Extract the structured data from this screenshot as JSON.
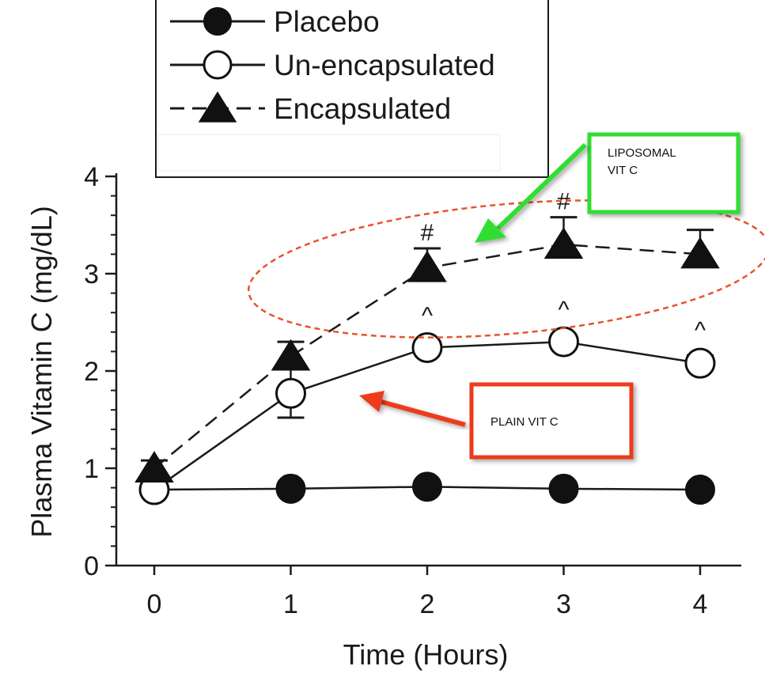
{
  "chart_data": {
    "type": "line",
    "xlabel": "Time (Hours)",
    "ylabel": "Plasma Vitamin C (mg/dL)",
    "x": [
      0,
      1,
      2,
      3,
      4
    ],
    "xlim": [
      -0.3,
      4.4
    ],
    "ylim": [
      0,
      4
    ],
    "x_ticks": [
      "0",
      "1",
      "2",
      "3",
      "4"
    ],
    "y_ticks": [
      "0",
      "1",
      "2",
      "3",
      "4"
    ],
    "grid": false,
    "legend_position": "top",
    "series": [
      {
        "name": "Placebo",
        "values": [
          0.78,
          0.79,
          0.81,
          0.79,
          0.78
        ],
        "errors": [
          0.05,
          0.05,
          0.05,
          0.05,
          0.05
        ],
        "marker": "filled-circle",
        "line": "solid",
        "sig": [
          "",
          "",
          "",
          "",
          ""
        ]
      },
      {
        "name": "Un-encapsulated",
        "values": [
          0.78,
          1.77,
          2.24,
          2.3,
          2.08
        ],
        "errors": [
          0.05,
          0.25,
          0.07,
          0.07,
          0.08
        ],
        "marker": "open-circle",
        "line": "solid",
        "sig": [
          "",
          "",
          "^",
          "^",
          "^"
        ]
      },
      {
        "name": "Encapsulated",
        "values": [
          1.0,
          2.15,
          3.06,
          3.3,
          3.2
        ],
        "errors": [
          0.08,
          0.15,
          0.2,
          0.28,
          0.25
        ],
        "marker": "filled-triangle",
        "line": "dashed",
        "sig": [
          "",
          "",
          "#",
          "#",
          ""
        ]
      }
    ],
    "annotations": {
      "liposomal": {
        "lines": [
          "LIPOSOMAL",
          "VIT C"
        ],
        "color": "#33dd33"
      },
      "plain": {
        "lines": [
          "PLAIN VIT C"
        ],
        "color": "#ee3b1c"
      },
      "ellipse_color": "#e8532b"
    }
  }
}
